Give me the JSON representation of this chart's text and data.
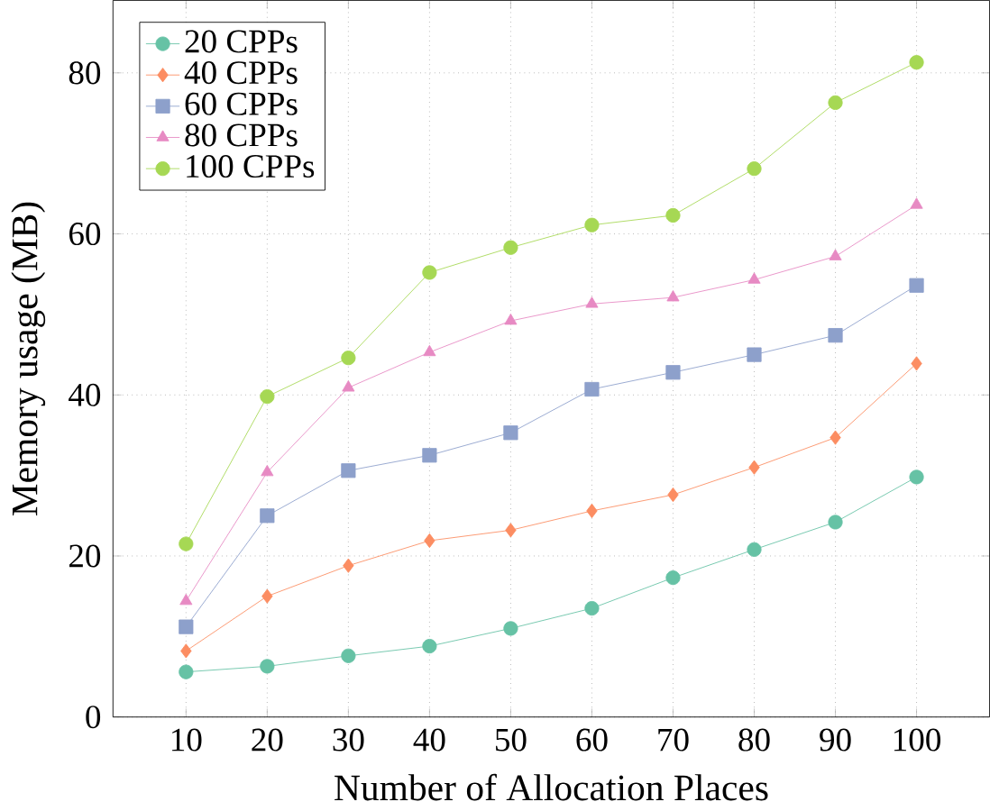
{
  "chart_data": {
    "type": "line",
    "xlabel": "Number of Allocation Places",
    "ylabel": "Memory usage (MB)",
    "x": [
      10,
      20,
      30,
      40,
      50,
      60,
      70,
      80,
      90,
      100
    ],
    "series": [
      {
        "name": "20 CPPs",
        "color": "#66c2a5",
        "marker": "circle",
        "values": [
          5.6,
          6.3,
          7.6,
          8.8,
          11.0,
          13.5,
          17.3,
          20.8,
          24.2,
          29.8
        ]
      },
      {
        "name": "40 CPPs",
        "color": "#fc8d62",
        "marker": "diamond",
        "values": [
          8.2,
          15.0,
          18.8,
          21.9,
          23.2,
          25.6,
          27.6,
          31.0,
          34.7,
          43.9
        ]
      },
      {
        "name": "60 CPPs",
        "color": "#8da0cb",
        "marker": "square",
        "values": [
          11.2,
          25.0,
          30.6,
          32.5,
          35.3,
          40.7,
          42.8,
          45.0,
          47.4,
          53.6
        ]
      },
      {
        "name": "80 CPPs",
        "color": "#e78ac3",
        "marker": "triangle",
        "values": [
          14.4,
          30.4,
          40.9,
          45.3,
          49.2,
          51.3,
          52.1,
          54.3,
          57.2,
          63.6
        ]
      },
      {
        "name": "100 CPPs",
        "color": "#a6d854",
        "marker": "circle",
        "values": [
          21.5,
          39.8,
          44.6,
          55.2,
          58.3,
          61.1,
          62.3,
          68.1,
          76.3,
          81.3
        ]
      }
    ],
    "xlim": [
      1,
      109
    ],
    "ylim": [
      0,
      89
    ],
    "xticks": [
      10,
      20,
      30,
      40,
      50,
      60,
      70,
      80,
      90,
      100
    ],
    "yticks": [
      0,
      20,
      40,
      60,
      80
    ],
    "grid": true,
    "legend": "top left",
    "line_style": "solid"
  }
}
